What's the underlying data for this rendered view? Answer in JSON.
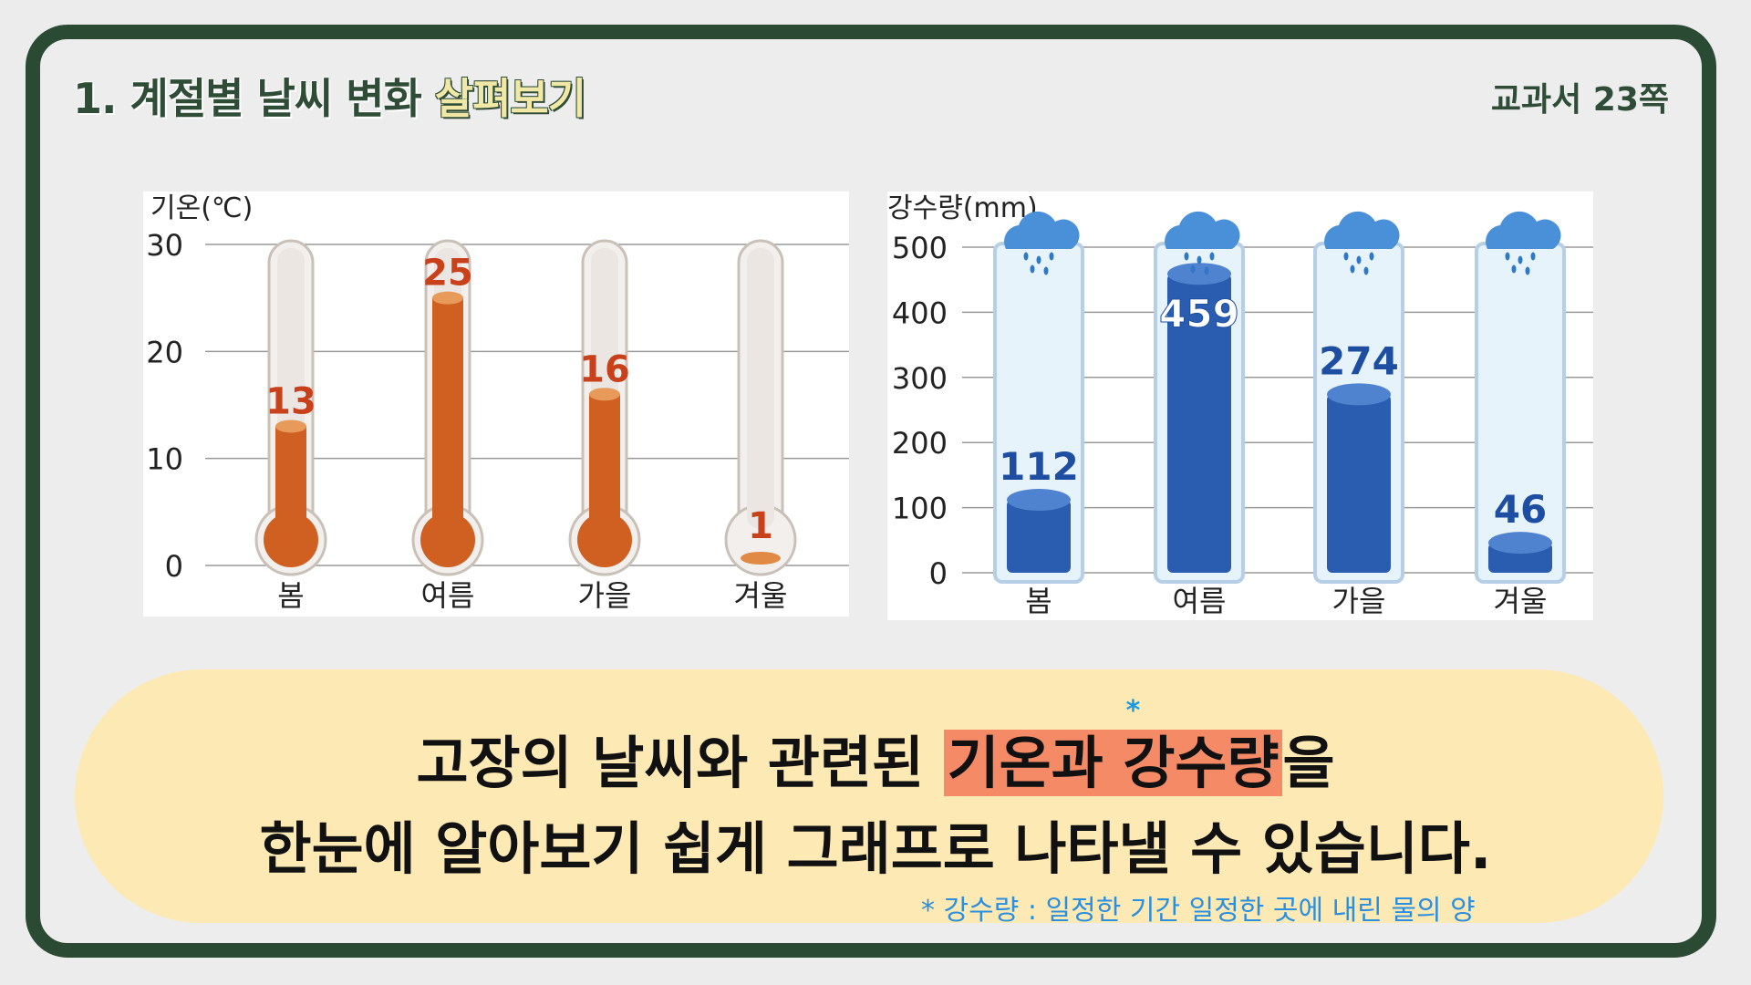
{
  "header": {
    "title_main": "1. 계절별 날씨 변화 ",
    "title_highlight": "살펴보기",
    "page_ref": "교과서 23쪽"
  },
  "colors": {
    "frame": "#2b4a34",
    "temperature_fill": "#d05f22",
    "temperature_label": "#c8411b",
    "rain_fill": "#2a5db0",
    "rain_label": "#1d4ea1",
    "highlight": "#f58a66",
    "bubble": "#fde9b4"
  },
  "chart_data": [
    {
      "type": "bar",
      "style": "thermometer",
      "ylabel": "기온(℃)",
      "categories": [
        "봄",
        "여름",
        "가을",
        "겨울"
      ],
      "values": [
        13,
        25,
        16,
        1
      ],
      "ylim": [
        0,
        30
      ],
      "yticks": [
        0,
        10,
        20,
        30
      ],
      "grid": true
    },
    {
      "type": "bar",
      "style": "rain-gauge",
      "ylabel": "강수량(mm)",
      "categories": [
        "봄",
        "여름",
        "가을",
        "겨울"
      ],
      "values": [
        112,
        459,
        274,
        46
      ],
      "ylim": [
        0,
        500
      ],
      "yticks": [
        0,
        100,
        200,
        300,
        400,
        500
      ],
      "grid": true
    }
  ],
  "summary": {
    "line1_before": "고장의 날씨와 관련된 ",
    "line1_highlight": "기온과 강수량",
    "line1_after": "을",
    "line1_star": "*",
    "line2": "한눈에 알아보기 쉽게 그래프로 나타낼 수 있습니다.",
    "footnote": "* 강수량 : 일정한 기간 일정한 곳에 내린 물의 양"
  }
}
